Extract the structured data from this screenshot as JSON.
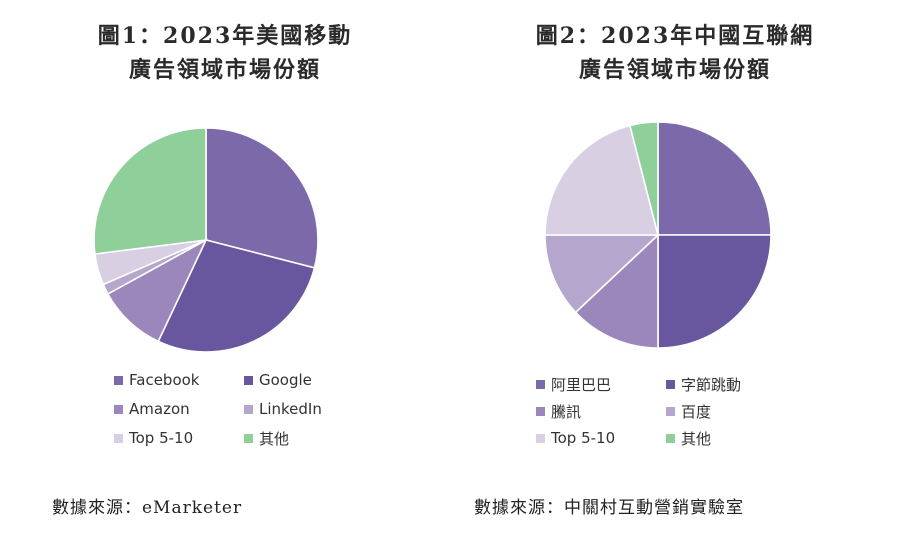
{
  "chart_data": [
    {
      "type": "pie",
      "title_line1": "圖1：2023年美國移動",
      "title_line2": "廣告領域市場份額",
      "slices": [
        {
          "label": "Facebook",
          "value": 29,
          "color": "#7b69aa"
        },
        {
          "label": "Google",
          "value": 28,
          "color": "#68579e"
        },
        {
          "label": "Amazon",
          "value": 10,
          "color": "#9b87bc"
        },
        {
          "label": "LinkedIn",
          "value": 1.5,
          "color": "#b5a6cd"
        },
        {
          "label": "Top 5-10",
          "value": 4.5,
          "color": "#d9cfe3"
        },
        {
          "label": "其他",
          "value": 27,
          "color": "#8fcf9a"
        }
      ],
      "source": "數據來源：eMarketer"
    },
    {
      "type": "pie",
      "title_line1": "圖2：2023年中國互聯網",
      "title_line2": "廣告領域市場份額",
      "slices": [
        {
          "label": "阿里巴巴",
          "value": 25,
          "color": "#7b69aa"
        },
        {
          "label": "字節跳動",
          "value": 25,
          "color": "#68579e"
        },
        {
          "label": "騰訊",
          "value": 13,
          "color": "#9b87bc"
        },
        {
          "label": "百度",
          "value": 12,
          "color": "#b5a6cd"
        },
        {
          "label": "Top 5-10",
          "value": 21,
          "color": "#d9cfe3"
        },
        {
          "label": "其他",
          "value": 4,
          "color": "#8fcf9a"
        }
      ],
      "source": "數據來源：中關村互動營銷實驗室"
    }
  ]
}
